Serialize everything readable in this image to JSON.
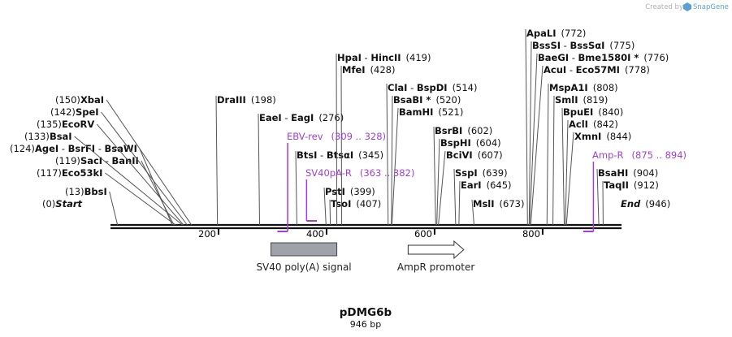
{
  "credit": {
    "created_by": "Created by",
    "product": "SnapGene"
  },
  "plasmid": {
    "name": "pDMG6b",
    "length": "946 bp"
  },
  "colors": {
    "primer": "#a33dd6",
    "feature_fill": "#9fa3a9",
    "backbone": "#111111"
  },
  "ticks": [
    {
      "bp": 200,
      "label": "200"
    },
    {
      "bp": 400,
      "label": "400"
    },
    {
      "bp": 600,
      "label": "600"
    },
    {
      "bp": 800,
      "label": "800"
    }
  ],
  "sites": [
    {
      "id": "start",
      "side": "right",
      "bp": 0,
      "parts": [
        {
          "t": "(0)",
          "c": "pos"
        },
        {
          "t": "Start",
          "c": "enz",
          "italic": true
        }
      ]
    },
    {
      "id": "bbsi",
      "side": "right",
      "bp": 13,
      "parts": [
        {
          "t": "(13)",
          "c": "pos"
        },
        {
          "t": "BbsI",
          "c": "enz"
        }
      ]
    },
    {
      "id": "eco53ki",
      "side": "right",
      "bp": 117,
      "parts": [
        {
          "t": "(117)",
          "c": "pos"
        },
        {
          "t": "Eco53kI",
          "c": "enz"
        }
      ]
    },
    {
      "id": "saci",
      "side": "right",
      "bp": 119,
      "parts": [
        {
          "t": "(119)",
          "c": "pos"
        },
        {
          "t": "SacI",
          "c": "enz"
        },
        {
          "t": " - ",
          "c": "pos"
        },
        {
          "t": "BanII",
          "c": "enz"
        }
      ]
    },
    {
      "id": "agei",
      "side": "right",
      "bp": 124,
      "parts": [
        {
          "t": "(124)",
          "c": "pos"
        },
        {
          "t": "AgeI",
          "c": "enz"
        },
        {
          "t": " - ",
          "c": "pos"
        },
        {
          "t": "BsrFI",
          "c": "enz"
        },
        {
          "t": " - ",
          "c": "pos"
        },
        {
          "t": "BsaWI",
          "c": "enz"
        }
      ]
    },
    {
      "id": "bsai",
      "side": "right",
      "bp": 133,
      "parts": [
        {
          "t": "(133)",
          "c": "pos"
        },
        {
          "t": "BsaI",
          "c": "enz"
        }
      ]
    },
    {
      "id": "ecorv",
      "side": "right",
      "bp": 135,
      "parts": [
        {
          "t": "(135)",
          "c": "pos"
        },
        {
          "t": "EcoRV",
          "c": "enz"
        }
      ]
    },
    {
      "id": "spei",
      "side": "right",
      "bp": 142,
      "parts": [
        {
          "t": "(142)",
          "c": "pos"
        },
        {
          "t": "SpeI",
          "c": "enz"
        }
      ]
    },
    {
      "id": "xbai",
      "side": "right",
      "bp": 150,
      "parts": [
        {
          "t": "(150)",
          "c": "pos"
        },
        {
          "t": "XbaI",
          "c": "enz"
        }
      ]
    },
    {
      "id": "draiii",
      "side": "left",
      "bp": 198,
      "parts": [
        {
          "t": "DraIII",
          "c": "enz"
        },
        {
          "t": "(198)",
          "c": "pos"
        }
      ]
    },
    {
      "id": "eaei",
      "side": "left",
      "bp": 276,
      "parts": [
        {
          "t": "EaeI",
          "c": "enz"
        },
        {
          "t": " - ",
          "c": "pos"
        },
        {
          "t": "EagI",
          "c": "enz"
        },
        {
          "t": "(276)",
          "c": "pos"
        }
      ]
    },
    {
      "id": "btsi",
      "side": "left",
      "bp": 345,
      "parts": [
        {
          "t": "BtsI",
          "c": "enz"
        },
        {
          "t": " - ",
          "c": "pos"
        },
        {
          "t": "BtsαI",
          "c": "enz"
        },
        {
          "t": "(345)",
          "c": "pos"
        }
      ]
    },
    {
      "id": "psti",
      "side": "left",
      "bp": 399,
      "parts": [
        {
          "t": "PstI",
          "c": "enz"
        },
        {
          "t": "(399)",
          "c": "pos"
        }
      ]
    },
    {
      "id": "tsoi",
      "side": "left",
      "bp": 407,
      "parts": [
        {
          "t": "TsoI",
          "c": "enz"
        },
        {
          "t": "(407)",
          "c": "pos"
        }
      ]
    },
    {
      "id": "hpai",
      "side": "left",
      "bp": 419,
      "parts": [
        {
          "t": "HpaI",
          "c": "enz"
        },
        {
          "t": " - ",
          "c": "pos"
        },
        {
          "t": "HincII",
          "c": "enz"
        },
        {
          "t": "(419)",
          "c": "pos"
        }
      ]
    },
    {
      "id": "mfei",
      "side": "left",
      "bp": 428,
      "parts": [
        {
          "t": "MfeI",
          "c": "enz"
        },
        {
          "t": "(428)",
          "c": "pos"
        }
      ]
    },
    {
      "id": "clai",
      "side": "left",
      "bp": 514,
      "parts": [
        {
          "t": "ClaI",
          "c": "enz"
        },
        {
          "t": " - ",
          "c": "pos"
        },
        {
          "t": "BspDI",
          "c": "enz"
        },
        {
          "t": "(514)",
          "c": "pos"
        }
      ]
    },
    {
      "id": "bsabi",
      "side": "left",
      "bp": 520,
      "parts": [
        {
          "t": "BsaBI *",
          "c": "enz"
        },
        {
          "t": "(520)",
          "c": "pos"
        }
      ]
    },
    {
      "id": "bamhi",
      "side": "left",
      "bp": 521,
      "parts": [
        {
          "t": "BamHI",
          "c": "enz"
        },
        {
          "t": "(521)",
          "c": "pos"
        }
      ]
    },
    {
      "id": "bsrbi",
      "side": "left",
      "bp": 602,
      "parts": [
        {
          "t": "BsrBI",
          "c": "enz"
        },
        {
          "t": "(602)",
          "c": "pos"
        }
      ]
    },
    {
      "id": "bsphi",
      "side": "left",
      "bp": 604,
      "parts": [
        {
          "t": "BspHI",
          "c": "enz"
        },
        {
          "t": "(604)",
          "c": "pos"
        }
      ]
    },
    {
      "id": "bcivi",
      "side": "left",
      "bp": 607,
      "parts": [
        {
          "t": "BciVI",
          "c": "enz"
        },
        {
          "t": "(607)",
          "c": "pos"
        }
      ]
    },
    {
      "id": "sspi",
      "side": "left",
      "bp": 639,
      "parts": [
        {
          "t": "SspI",
          "c": "enz"
        },
        {
          "t": "(639)",
          "c": "pos"
        }
      ]
    },
    {
      "id": "eari",
      "side": "left",
      "bp": 645,
      "parts": [
        {
          "t": "EarI",
          "c": "enz"
        },
        {
          "t": "(645)",
          "c": "pos"
        }
      ]
    },
    {
      "id": "msli",
      "side": "left",
      "bp": 673,
      "parts": [
        {
          "t": "MslI",
          "c": "enz"
        },
        {
          "t": "(673)",
          "c": "pos"
        }
      ]
    },
    {
      "id": "apali",
      "side": "left",
      "bp": 772,
      "parts": [
        {
          "t": "ApaLI",
          "c": "enz"
        },
        {
          "t": "(772)",
          "c": "pos"
        }
      ]
    },
    {
      "id": "bsssi",
      "side": "left",
      "bp": 775,
      "parts": [
        {
          "t": "BssSI",
          "c": "enz"
        },
        {
          "t": " - ",
          "c": "pos"
        },
        {
          "t": "BssSαI",
          "c": "enz"
        },
        {
          "t": "(775)",
          "c": "pos"
        }
      ]
    },
    {
      "id": "baegi",
      "side": "left",
      "bp": 776,
      "parts": [
        {
          "t": "BaeGI",
          "c": "enz"
        },
        {
          "t": " - ",
          "c": "pos"
        },
        {
          "t": "Bme1580I *",
          "c": "enz"
        },
        {
          "t": "(776)",
          "c": "pos"
        }
      ]
    },
    {
      "id": "acui",
      "side": "left",
      "bp": 778,
      "parts": [
        {
          "t": "AcuI",
          "c": "enz"
        },
        {
          "t": " - ",
          "c": "pos"
        },
        {
          "t": "Eco57MI",
          "c": "enz"
        },
        {
          "t": "(778)",
          "c": "pos"
        }
      ]
    },
    {
      "id": "mspa1i",
      "side": "left",
      "bp": 808,
      "parts": [
        {
          "t": "MspA1I",
          "c": "enz"
        },
        {
          "t": "(808)",
          "c": "pos"
        }
      ]
    },
    {
      "id": "smli",
      "side": "left",
      "bp": 819,
      "parts": [
        {
          "t": "SmlI",
          "c": "enz"
        },
        {
          "t": "(819)",
          "c": "pos"
        }
      ]
    },
    {
      "id": "bpuei",
      "side": "left",
      "bp": 840,
      "parts": [
        {
          "t": "BpuEI",
          "c": "enz"
        },
        {
          "t": "(840)",
          "c": "pos"
        }
      ]
    },
    {
      "id": "acli",
      "side": "left",
      "bp": 842,
      "parts": [
        {
          "t": "AclI",
          "c": "enz"
        },
        {
          "t": "(842)",
          "c": "pos"
        }
      ]
    },
    {
      "id": "xmni",
      "side": "left",
      "bp": 844,
      "parts": [
        {
          "t": "XmnI",
          "c": "enz"
        },
        {
          "t": "(844)",
          "c": "pos"
        }
      ]
    },
    {
      "id": "bsahi",
      "side": "left",
      "bp": 904,
      "parts": [
        {
          "t": "BsaHI",
          "c": "enz"
        },
        {
          "t": "(904)",
          "c": "pos"
        }
      ]
    },
    {
      "id": "taqii",
      "side": "left",
      "bp": 912,
      "parts": [
        {
          "t": "TaqII",
          "c": "enz"
        },
        {
          "t": "(912)",
          "c": "pos"
        }
      ]
    },
    {
      "id": "end",
      "side": "left",
      "bp": 946,
      "parts": [
        {
          "t": "End",
          "c": "enz",
          "italic": true
        },
        {
          "t": "(946)",
          "c": "pos"
        }
      ]
    }
  ],
  "primers": [
    {
      "id": "ebv-rev",
      "name": "EBV-rev",
      "range": "(309 .. 328)",
      "start": 309,
      "end": 328,
      "direction": "reverse"
    },
    {
      "id": "sv40pa-r",
      "name": "SV40pA-R",
      "range": "(363 .. 382)",
      "start": 363,
      "end": 382,
      "direction": "forward"
    },
    {
      "id": "amp-r",
      "name": "Amp-R",
      "range": "(875 .. 894)",
      "start": 875,
      "end": 894,
      "direction": "reverse"
    }
  ],
  "features": [
    {
      "id": "sv40-polya",
      "name": "SV40 poly(A) signal",
      "start": 297,
      "end": 419,
      "shape": "box"
    },
    {
      "id": "ampr-promoter",
      "name": "AmpR promoter",
      "start": 551,
      "end": 654,
      "shape": "arrow"
    }
  ]
}
